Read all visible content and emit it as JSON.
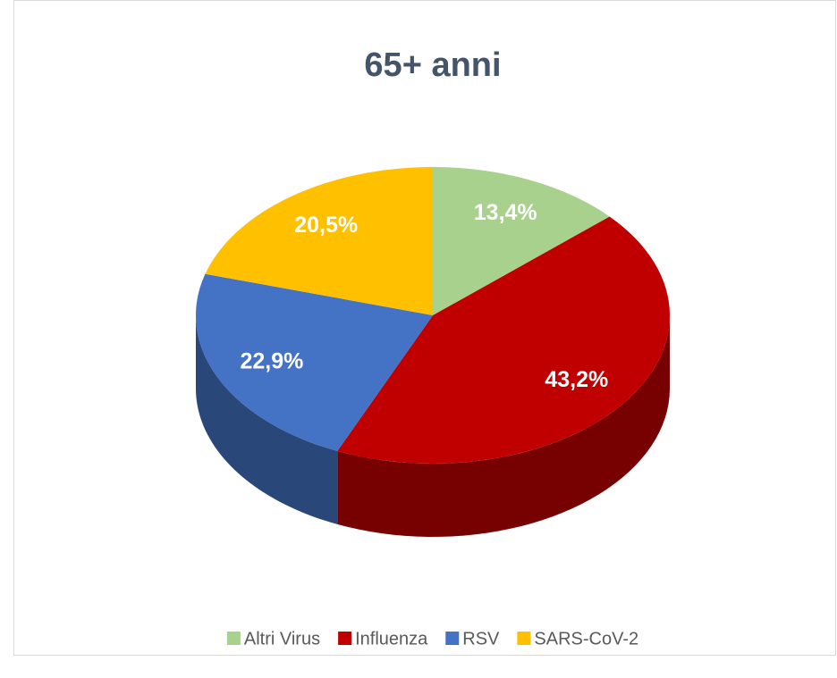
{
  "chart_data": {
    "type": "pie",
    "title": "65+ anni",
    "categories": [
      "Altri Virus",
      "Influenza",
      "RSV",
      "SARS-CoV-2"
    ],
    "values": [
      13.4,
      43.2,
      22.9,
      20.5
    ],
    "value_labels": [
      "13,4%",
      "43,2%",
      "22,9%",
      "20,5%"
    ],
    "colors": [
      "#a9d18e",
      "#c00000",
      "#4472c4",
      "#ffc000"
    ],
    "legend": "bottom"
  }
}
